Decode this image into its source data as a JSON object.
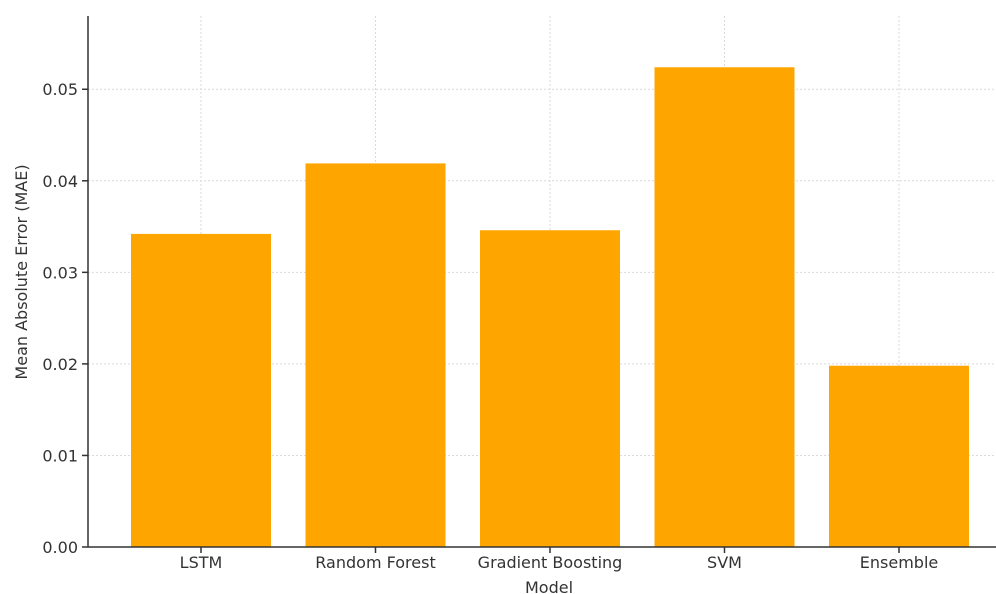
{
  "chart_data": {
    "type": "bar",
    "categories": [
      "LSTM",
      "Random Forest",
      "Gradient Boosting",
      "SVM",
      "Ensemble"
    ],
    "values": [
      0.0342,
      0.0419,
      0.0346,
      0.0524,
      0.0198
    ],
    "title": "",
    "xlabel": "Model",
    "ylabel": "Mean Absolute Error (MAE)",
    "ylim": [
      0,
      0.058
    ],
    "yticks": [
      0.0,
      0.01,
      0.02,
      0.03,
      0.04,
      0.05
    ],
    "ytick_labels": [
      "0.00",
      "0.01",
      "0.02",
      "0.03",
      "0.04",
      "0.05"
    ],
    "grid": true,
    "bar_color": "#FFA500"
  }
}
